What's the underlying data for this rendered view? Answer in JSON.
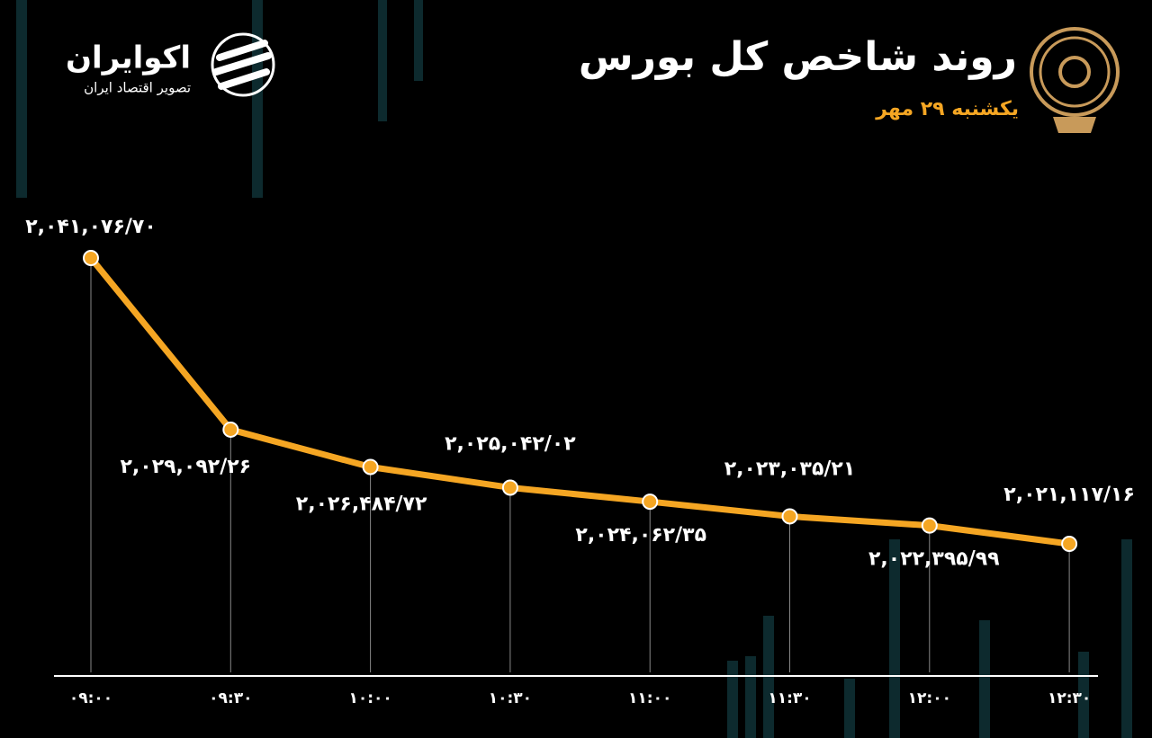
{
  "logo": {
    "name": "اکوایران",
    "tagline": "تصویر اقتصاد ایران"
  },
  "chart_data": {
    "type": "line",
    "title": "روند شاخص کل بورس",
    "subtitle": "یکشنبه ۲۹ مهر",
    "categories": [
      "۰۹:۰۰",
      "۰۹:۳۰",
      "۱۰:۰۰",
      "۱۰:۳۰",
      "۱۱:۰۰",
      "۱۱:۳۰",
      "۱۲:۰۰",
      "۱۲:۳۰"
    ],
    "values": [
      2041076.7,
      2029092.26,
      2026484.72,
      2025042.02,
      2024062.35,
      2023035.21,
      2022395.99,
      2021117.16
    ],
    "value_labels": [
      "۲,۰۴۱,۰۷۶/۷۰",
      "۲,۰۲۹,۰۹۲/۲۶",
      "۲,۰۲۶,۴۸۴/۷۲",
      "۲,۰۲۵,۰۴۲/۰۲",
      "۲,۰۲۴,۰۶۲/۳۵",
      "۲,۰۲۳,۰۳۵/۲۱",
      "۲,۰۲۲,۳۹۵/۹۹",
      "۲,۰۲۱,۱۱۷/۱۶"
    ],
    "color": "#f5a623"
  }
}
